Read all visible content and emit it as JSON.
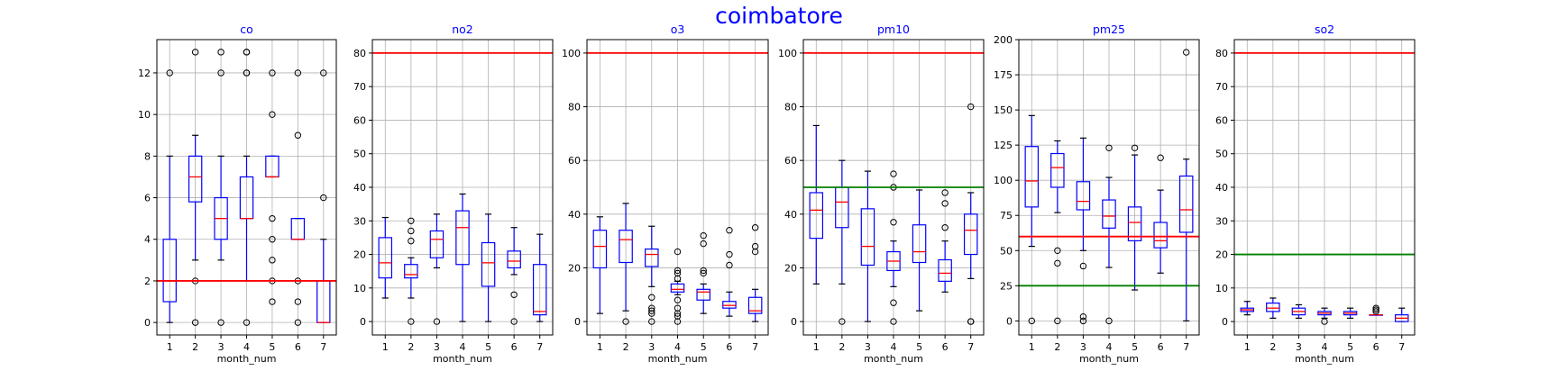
{
  "title": "coimbatore",
  "colors": {
    "box": "#0000ff",
    "median": "#ff0000",
    "whisker": "#000000",
    "red_line": "#ff0000",
    "green_line": "#008000",
    "title": "#0000ff"
  },
  "chart_data": [
    {
      "type": "boxplot",
      "title": "co",
      "xlabel": "month_num",
      "ylabel": "",
      "categories": [
        "1",
        "2",
        "3",
        "4",
        "5",
        "6",
        "7"
      ],
      "ylim": [
        -0.6,
        13.6
      ],
      "yticks": [
        0,
        2,
        4,
        6,
        8,
        10,
        12
      ],
      "grid": true,
      "reference_lines": [
        {
          "y": 2,
          "color": "red"
        }
      ],
      "boxes": [
        {
          "q1": 1,
          "median": 2,
          "q3": 4,
          "whislo": 0,
          "whishi": 8,
          "fliers": [
            12
          ]
        },
        {
          "q1": 5.8,
          "median": 7,
          "q3": 8,
          "whislo": 3,
          "whishi": 9,
          "fliers": [
            0,
            2,
            13
          ]
        },
        {
          "q1": 4,
          "median": 5,
          "q3": 6,
          "whislo": 3,
          "whishi": 8,
          "fliers": [
            0,
            12,
            13
          ]
        },
        {
          "q1": 5,
          "median": 5,
          "q3": 7,
          "whislo": 2,
          "whishi": 8,
          "fliers": [
            0,
            12,
            12,
            13,
            13
          ]
        },
        {
          "q1": 7,
          "median": 7,
          "q3": 8,
          "whislo": 7,
          "whishi": 8,
          "fliers": [
            1,
            2,
            3,
            4,
            5,
            10,
            12
          ]
        },
        {
          "q1": 4,
          "median": 4,
          "q3": 5,
          "whislo": 4,
          "whishi": 5,
          "fliers": [
            0,
            1,
            2,
            9,
            12
          ]
        },
        {
          "q1": 0,
          "median": 0,
          "q3": 2,
          "whislo": 0,
          "whishi": 4,
          "fliers": [
            6,
            12
          ]
        }
      ]
    },
    {
      "type": "boxplot",
      "title": "no2",
      "xlabel": "month_num",
      "ylabel": "",
      "categories": [
        "1",
        "2",
        "3",
        "4",
        "5",
        "6",
        "7"
      ],
      "ylim": [
        -4,
        84
      ],
      "yticks": [
        0,
        10,
        20,
        30,
        40,
        50,
        60,
        70,
        80
      ],
      "grid": true,
      "reference_lines": [
        {
          "y": 80,
          "color": "red"
        }
      ],
      "boxes": [
        {
          "q1": 13,
          "median": 17.5,
          "q3": 25,
          "whislo": 7,
          "whishi": 31,
          "fliers": []
        },
        {
          "q1": 13,
          "median": 14,
          "q3": 17,
          "whislo": 7,
          "whishi": 19,
          "fliers": [
            0,
            24,
            27,
            30
          ]
        },
        {
          "q1": 19,
          "median": 24.5,
          "q3": 27,
          "whislo": 16,
          "whishi": 32,
          "fliers": [
            0
          ]
        },
        {
          "q1": 17,
          "median": 28,
          "q3": 33,
          "whislo": 0,
          "whishi": 38,
          "fliers": []
        },
        {
          "q1": 10.5,
          "median": 17.5,
          "q3": 23.5,
          "whislo": 0,
          "whishi": 32,
          "fliers": []
        },
        {
          "q1": 16,
          "median": 18,
          "q3": 21,
          "whislo": 14,
          "whishi": 28,
          "fliers": [
            0,
            8
          ]
        },
        {
          "q1": 2,
          "median": 3,
          "q3": 17,
          "whislo": 0,
          "whishi": 26,
          "fliers": []
        }
      ]
    },
    {
      "type": "boxplot",
      "title": "o3",
      "xlabel": "month_num",
      "ylabel": "",
      "categories": [
        "1",
        "2",
        "3",
        "4",
        "5",
        "6",
        "7"
      ],
      "ylim": [
        -5,
        105
      ],
      "yticks": [
        0,
        20,
        40,
        60,
        80,
        100
      ],
      "grid": true,
      "reference_lines": [
        {
          "y": 100,
          "color": "red"
        }
      ],
      "boxes": [
        {
          "q1": 20,
          "median": 28,
          "q3": 34,
          "whislo": 3,
          "whishi": 39,
          "fliers": []
        },
        {
          "q1": 22,
          "median": 30.5,
          "q3": 34,
          "whislo": 4,
          "whishi": 44,
          "fliers": [
            0
          ]
        },
        {
          "q1": 20.5,
          "median": 25,
          "q3": 27,
          "whislo": 13,
          "whishi": 35.5,
          "fliers": [
            0,
            3,
            4,
            5,
            9
          ]
        },
        {
          "q1": 11,
          "median": 12,
          "q3": 14,
          "whislo": 10,
          "whishi": 15,
          "fliers": [
            0,
            2,
            3,
            5,
            8,
            16,
            18,
            19,
            26
          ]
        },
        {
          "q1": 8,
          "median": 11,
          "q3": 12,
          "whislo": 3,
          "whishi": 14,
          "fliers": [
            18,
            19,
            29,
            32
          ]
        },
        {
          "q1": 5,
          "median": 6,
          "q3": 7.5,
          "whislo": 2,
          "whishi": 11,
          "fliers": [
            21,
            25,
            34
          ]
        },
        {
          "q1": 3,
          "median": 4,
          "q3": 9,
          "whislo": 0,
          "whishi": 12,
          "fliers": [
            26,
            28,
            35
          ]
        }
      ]
    },
    {
      "type": "boxplot",
      "title": "pm10",
      "xlabel": "month_num",
      "ylabel": "",
      "categories": [
        "1",
        "2",
        "3",
        "4",
        "5",
        "6",
        "7"
      ],
      "ylim": [
        -5,
        105
      ],
      "yticks": [
        0,
        20,
        40,
        60,
        80,
        100
      ],
      "grid": true,
      "reference_lines": [
        {
          "y": 100,
          "color": "red"
        },
        {
          "y": 50,
          "color": "green"
        }
      ],
      "boxes": [
        {
          "q1": 31,
          "median": 41.5,
          "q3": 48,
          "whislo": 14,
          "whishi": 73,
          "fliers": []
        },
        {
          "q1": 35,
          "median": 44.5,
          "q3": 50,
          "whislo": 14,
          "whishi": 60,
          "fliers": [
            0
          ]
        },
        {
          "q1": 21,
          "median": 28,
          "q3": 42,
          "whislo": 0,
          "whishi": 56,
          "fliers": []
        },
        {
          "q1": 19,
          "median": 22.5,
          "q3": 26,
          "whislo": 13,
          "whishi": 30,
          "fliers": [
            0,
            7,
            37,
            50,
            55
          ]
        },
        {
          "q1": 22,
          "median": 26,
          "q3": 36,
          "whislo": 4,
          "whishi": 49,
          "fliers": []
        },
        {
          "q1": 15,
          "median": 18,
          "q3": 23,
          "whislo": 11,
          "whishi": 30,
          "fliers": [
            35,
            44,
            48
          ]
        },
        {
          "q1": 25,
          "median": 34,
          "q3": 40,
          "whislo": 16,
          "whishi": 48,
          "fliers": [
            0,
            0,
            80
          ]
        }
      ]
    },
    {
      "type": "boxplot",
      "title": "pm25",
      "xlabel": "month_num",
      "ylabel": "",
      "categories": [
        "1",
        "2",
        "3",
        "4",
        "5",
        "6",
        "7"
      ],
      "ylim": [
        -10,
        200
      ],
      "yticks": [
        0,
        25,
        50,
        75,
        100,
        125,
        150,
        175,
        200
      ],
      "grid": true,
      "reference_lines": [
        {
          "y": 60,
          "color": "red"
        },
        {
          "y": 25,
          "color": "green"
        }
      ],
      "boxes": [
        {
          "q1": 81,
          "median": 99.5,
          "q3": 124,
          "whislo": 53,
          "whishi": 146,
          "fliers": [
            0
          ]
        },
        {
          "q1": 95,
          "median": 109,
          "q3": 119,
          "whislo": 77,
          "whishi": 128,
          "fliers": [
            0,
            41,
            50
          ]
        },
        {
          "q1": 79,
          "median": 85,
          "q3": 99,
          "whislo": 50,
          "whishi": 130,
          "fliers": [
            0,
            3,
            39
          ]
        },
        {
          "q1": 66,
          "median": 74.5,
          "q3": 86,
          "whislo": 38,
          "whishi": 102,
          "fliers": [
            0,
            123
          ]
        },
        {
          "q1": 57,
          "median": 70,
          "q3": 81,
          "whislo": 22,
          "whishi": 118,
          "fliers": [
            123
          ]
        },
        {
          "q1": 52,
          "median": 57,
          "q3": 70,
          "whislo": 34,
          "whishi": 93,
          "fliers": [
            116
          ]
        },
        {
          "q1": 63,
          "median": 79,
          "q3": 103,
          "whislo": 0,
          "whishi": 115,
          "fliers": [
            191
          ]
        }
      ]
    },
    {
      "type": "boxplot",
      "title": "so2",
      "xlabel": "month_num",
      "ylabel": "",
      "categories": [
        "1",
        "2",
        "3",
        "4",
        "5",
        "6",
        "7"
      ],
      "ylim": [
        -4,
        84
      ],
      "yticks": [
        0,
        10,
        20,
        30,
        40,
        50,
        60,
        70,
        80
      ],
      "grid": true,
      "reference_lines": [
        {
          "y": 80,
          "color": "red"
        },
        {
          "y": 20,
          "color": "green"
        }
      ],
      "boxes": [
        {
          "q1": 3,
          "median": 3.5,
          "q3": 4,
          "whislo": 2,
          "whishi": 6,
          "fliers": []
        },
        {
          "q1": 3,
          "median": 4,
          "q3": 5.5,
          "whislo": 1,
          "whishi": 7,
          "fliers": []
        },
        {
          "q1": 2,
          "median": 3,
          "q3": 4,
          "whislo": 1,
          "whishi": 5,
          "fliers": []
        },
        {
          "q1": 2,
          "median": 2.5,
          "q3": 3,
          "whislo": 1,
          "whishi": 4,
          "fliers": [
            0
          ]
        },
        {
          "q1": 2,
          "median": 2.5,
          "q3": 3,
          "whislo": 1,
          "whishi": 4,
          "fliers": []
        },
        {
          "q1": 2,
          "median": 2,
          "q3": 2,
          "whislo": 2,
          "whishi": 2,
          "fliers": [
            3,
            3.5,
            4
          ]
        },
        {
          "q1": 0,
          "median": 1,
          "q3": 2,
          "whislo": 0,
          "whishi": 4,
          "fliers": []
        }
      ]
    }
  ]
}
